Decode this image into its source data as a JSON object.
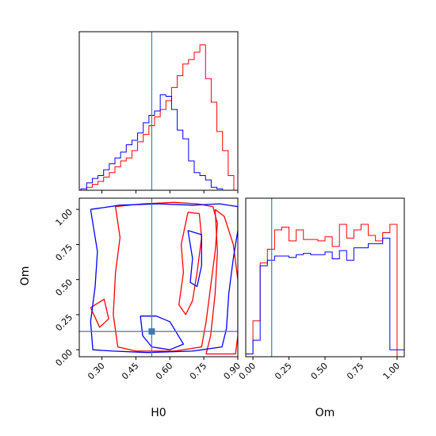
{
  "chart_data": [
    {
      "type": "histogram",
      "panel": "H0 marginal",
      "xlim": [
        0.2,
        0.9
      ],
      "bins": [
        0.22,
        0.245,
        0.27,
        0.295,
        0.32,
        0.345,
        0.37,
        0.395,
        0.42,
        0.445,
        0.47,
        0.495,
        0.52,
        0.545,
        0.57,
        0.595,
        0.62,
        0.645,
        0.67,
        0.695,
        0.72,
        0.745,
        0.77,
        0.795,
        0.82,
        0.845,
        0.87,
        0.895
      ],
      "series": [
        {
          "color": "#ff0000",
          "values": [
            0,
            0.02,
            0.04,
            0.06,
            0.09,
            0.12,
            0.16,
            0.2,
            0.22,
            0.27,
            0.33,
            0.38,
            0.44,
            0.5,
            0.55,
            0.61,
            0.7,
            0.78,
            0.86,
            0.89,
            0.94,
            0.99,
            0.76,
            0.6,
            0.4,
            0.27,
            0.1
          ]
        },
        {
          "color": "#0000ff",
          "values": [
            0.01,
            0.05,
            0.08,
            0.1,
            0.14,
            0.18,
            0.22,
            0.26,
            0.31,
            0.34,
            0.39,
            0.46,
            0.51,
            0.54,
            0.65,
            0.64,
            0.55,
            0.41,
            0.35,
            0.2,
            0.12,
            0.1,
            0.07,
            0.02,
            0.01,
            0,
            0
          ]
        }
      ],
      "truth_line": 0.52,
      "ylim": [
        0,
        1.08
      ]
    },
    {
      "type": "contour",
      "panel": "H0 vs Om",
      "xlabel": "H0",
      "ylabel": "Om",
      "xlim": [
        0.2,
        0.9
      ],
      "ylim": [
        -0.05,
        1.08
      ],
      "xticks": [
        "0.30",
        "0.45",
        "0.60",
        "0.75",
        "0.90"
      ],
      "yticks": [
        "0.00",
        "0.25",
        "0.50",
        "0.75",
        "1.00"
      ],
      "truth_point": [
        0.52,
        0.13
      ],
      "series": [
        {
          "color": "#ff0000",
          "contours": [
            [
              [
                0.36,
                1.02
              ],
              [
                0.48,
                1.04
              ],
              [
                0.62,
                1.05
              ],
              [
                0.72,
                1.04
              ],
              [
                0.79,
                1.02
              ],
              [
                0.81,
                0.9
              ],
              [
                0.8,
                0.7
              ],
              [
                0.78,
                0.45
              ],
              [
                0.76,
                0.2
              ],
              [
                0.74,
                0.02
              ],
              [
                0.62,
                -0.01
              ],
              [
                0.45,
                -0.01
              ],
              [
                0.37,
                0.02
              ],
              [
                0.35,
                0.25
              ],
              [
                0.36,
                0.55
              ],
              [
                0.38,
                0.8
              ],
              [
                0.36,
                1.02
              ]
            ],
            [
              [
                0.68,
                0.98
              ],
              [
                0.73,
                0.97
              ],
              [
                0.74,
                0.8
              ],
              [
                0.72,
                0.55
              ],
              [
                0.7,
                0.35
              ],
              [
                0.67,
                0.25
              ],
              [
                0.64,
                0.32
              ],
              [
                0.66,
                0.55
              ],
              [
                0.65,
                0.75
              ],
              [
                0.68,
                0.98
              ]
            ],
            [
              [
                0.8,
                1.0
              ],
              [
                0.84,
                0.95
              ],
              [
                0.88,
                0.75
              ],
              [
                0.9,
                0.5
              ],
              [
                0.9,
                0.1
              ],
              [
                0.89,
                -0.03
              ],
              [
                0.76,
                -0.03
              ],
              [
                0.78,
                0.1
              ],
              [
                0.8,
                0.4
              ],
              [
                0.81,
                0.7
              ],
              [
                0.8,
                1.0
              ]
            ],
            [
              [
                0.25,
                0.3
              ],
              [
                0.31,
                0.36
              ],
              [
                0.33,
                0.22
              ],
              [
                0.29,
                0.16
              ],
              [
                0.25,
                0.3
              ]
            ]
          ]
        },
        {
          "color": "#0000ff",
          "contours": [
            [
              [
                0.25,
                1.0
              ],
              [
                0.38,
                1.03
              ],
              [
                0.55,
                1.04
              ],
              [
                0.7,
                1.03
              ],
              [
                0.82,
                1.04
              ],
              [
                0.9,
                1.02
              ],
              [
                0.9,
                0.85
              ],
              [
                0.88,
                0.65
              ],
              [
                0.86,
                0.4
              ],
              [
                0.85,
                0.15
              ],
              [
                0.83,
                0.02
              ],
              [
                0.7,
                -0.01
              ],
              [
                0.5,
                -0.02
              ],
              [
                0.35,
                -0.01
              ],
              [
                0.26,
                0.0
              ],
              [
                0.25,
                0.2
              ],
              [
                0.27,
                0.45
              ],
              [
                0.28,
                0.7
              ],
              [
                0.25,
                1.0
              ]
            ],
            [
              [
                0.47,
                0.24
              ],
              [
                0.54,
                0.24
              ],
              [
                0.6,
                0.2
              ],
              [
                0.66,
                0.04
              ],
              [
                0.6,
                0.0
              ],
              [
                0.52,
                0.02
              ],
              [
                0.48,
                0.1
              ],
              [
                0.47,
                0.24
              ]
            ],
            [
              [
                0.68,
                0.85
              ],
              [
                0.74,
                0.82
              ],
              [
                0.74,
                0.6
              ],
              [
                0.72,
                0.45
              ],
              [
                0.69,
                0.48
              ],
              [
                0.7,
                0.65
              ],
              [
                0.68,
                0.85
              ]
            ]
          ]
        }
      ]
    },
    {
      "type": "histogram",
      "panel": "Om marginal",
      "xlabel": "Om",
      "xlim": [
        -0.05,
        1.05
      ],
      "xticks": [
        "0.00",
        "0.25",
        "0.50",
        "0.75",
        "1.00"
      ],
      "bins": [
        -0.025,
        0.025,
        0.075,
        0.125,
        0.175,
        0.225,
        0.275,
        0.325,
        0.375,
        0.425,
        0.475,
        0.525,
        0.575,
        0.625,
        0.675,
        0.725,
        0.775,
        0.825,
        0.875,
        0.925,
        0.975,
        1.025
      ],
      "series": [
        {
          "color": "#ff0000",
          "values": [
            0.02,
            0.26,
            0.68,
            0.78,
            0.92,
            0.94,
            0.84,
            0.92,
            0.85,
            0.85,
            0.84,
            0.87,
            0.8,
            0.96,
            0.86,
            0.92,
            0.96,
            0.88,
            0.84,
            0.9,
            0.96,
            0.0
          ]
        },
        {
          "color": "#0000ff",
          "values": [
            0.02,
            0.12,
            0.66,
            0.7,
            0.73,
            0.73,
            0.72,
            0.74,
            0.75,
            0.74,
            0.74,
            0.76,
            0.71,
            0.77,
            0.7,
            0.79,
            0.79,
            0.82,
            0.82,
            0.86,
            0.05,
            0.05
          ]
        }
      ],
      "truth_line": 0.13,
      "ylim": [
        0,
        1.15
      ]
    }
  ]
}
